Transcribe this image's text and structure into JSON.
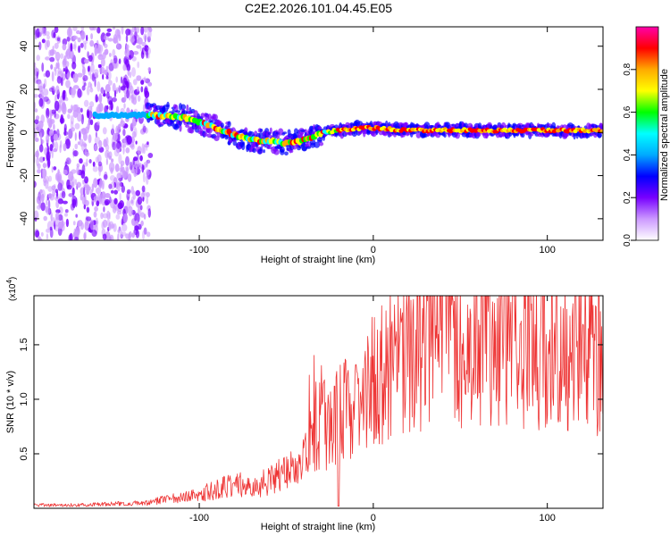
{
  "title": "C2E2.2026.101.04.45.E05",
  "chart_data": [
    {
      "type": "heatmap",
      "title": "C2E2.2026.101.04.45.E05",
      "xlabel": "Height of straight line (km)",
      "ylabel": "Frequency (Hz)",
      "xlim": [
        -195,
        132
      ],
      "ylim": [
        -50,
        49
      ],
      "x_ticks": [
        -100,
        0,
        100
      ],
      "x_tick_labels": [
        "-100",
        "0",
        "100"
      ],
      "y_ticks": [
        -40,
        -20,
        0,
        20,
        40
      ],
      "y_tick_labels": [
        "-40",
        "-20",
        "0",
        "20",
        "40"
      ],
      "ridge": {
        "x": [
          -160,
          -140,
          -125,
          -110,
          -100,
          -90,
          -80,
          -72,
          -65,
          -58,
          -50,
          -42,
          -35,
          -28,
          -20,
          -10,
          0,
          20,
          50,
          80,
          110,
          130
        ],
        "y": [
          8,
          8,
          8,
          7,
          5,
          2,
          -1,
          -3,
          -4,
          -4,
          -5,
          -4,
          -2,
          0,
          1,
          2,
          2,
          1,
          1,
          1,
          1,
          1
        ]
      },
      "colorbar": {
        "label": "Normalized spectral amplitude",
        "range": [
          0,
          1
        ],
        "ticks": [
          0.0,
          0.2,
          0.4,
          0.6,
          0.8
        ],
        "tick_labels": [
          "0.0",
          "0.2",
          "0.4",
          "0.6",
          "0.8"
        ],
        "colors": [
          "#ffffff",
          "#cc99ff",
          "#7700ff",
          "#0000ff",
          "#00aaff",
          "#00ffff",
          "#00ff00",
          "#ffff00",
          "#ffaa00",
          "#ff0000",
          "#ff00aa"
        ]
      }
    },
    {
      "type": "line",
      "xlabel": "Height of straight line (km)",
      "ylabel": "SNR (10 * v/v)",
      "y_multiplier": "(x10",
      "y_multiplier_exp": "4",
      "y_multiplier_close": ")",
      "xlim": [
        -195,
        132
      ],
      "ylim": [
        0,
        1.95
      ],
      "x_ticks": [
        -100,
        0,
        100
      ],
      "x_tick_labels": [
        "-100",
        "0",
        "100"
      ],
      "y_ticks": [
        0.5,
        1.0,
        1.5
      ],
      "y_tick_labels": [
        "0.5",
        "1.0",
        "1.5"
      ],
      "color": "#ee3333",
      "series": [
        {
          "name": "SNR",
          "x": [
            -195,
            -170,
            -150,
            -130,
            -120,
            -110,
            -100,
            -90,
            -80,
            -70,
            -60,
            -50,
            -40,
            -33,
            -30,
            -25,
            -20,
            -15,
            -10,
            -5,
            0,
            10,
            20,
            30,
            40,
            50,
            60,
            70,
            80,
            90,
            100,
            110,
            120,
            132
          ],
          "y": [
            0.03,
            0.03,
            0.04,
            0.05,
            0.08,
            0.1,
            0.13,
            0.17,
            0.22,
            0.2,
            0.25,
            0.35,
            0.45,
            0.7,
            0.8,
            0.7,
            0.85,
            0.9,
            0.95,
            1.05,
            1.15,
            1.3,
            1.4,
            1.55,
            1.55,
            1.55,
            1.52,
            1.55,
            1.53,
            1.52,
            1.55,
            1.5,
            1.5,
            1.45
          ]
        }
      ]
    }
  ]
}
